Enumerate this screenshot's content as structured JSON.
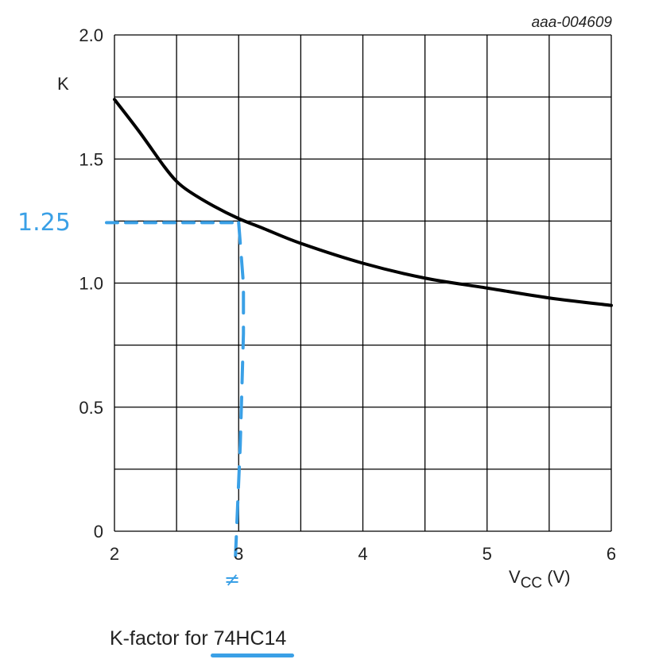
{
  "chart_data": {
    "type": "line",
    "title": "",
    "figure_code": "aaa-004609",
    "xlabel_main": "V",
    "xlabel_sub": "CC",
    "xlabel_unit": " (V)",
    "ylabel": "K",
    "xlim": [
      2,
      6
    ],
    "ylim": [
      0,
      2.0
    ],
    "xticks": [
      2,
      3,
      4,
      5,
      6
    ],
    "xtick_labels": [
      "2",
      "3",
      "4",
      "5",
      "6"
    ],
    "yticks": [
      0,
      0.5,
      1.0,
      1.5,
      2.0
    ],
    "ytick_labels": [
      "0",
      "0.5",
      "1.0",
      "1.5",
      "2.0"
    ],
    "x_grid": [
      2,
      2.5,
      3,
      3.5,
      4,
      4.5,
      5,
      5.5,
      6
    ],
    "y_grid": [
      0,
      0.25,
      0.5,
      0.75,
      1.0,
      1.25,
      1.5,
      1.75,
      2.0
    ],
    "grid": true,
    "series": [
      {
        "x": [
          2.0,
          2.2,
          2.4,
          2.5,
          2.6,
          2.8,
          3.0,
          3.2,
          3.5,
          4.0,
          4.5,
          5.0,
          5.5,
          6.0
        ],
        "y": [
          1.74,
          1.61,
          1.47,
          1.41,
          1.37,
          1.31,
          1.26,
          1.22,
          1.16,
          1.08,
          1.02,
          0.98,
          0.94,
          0.91
        ],
        "color": "#000000"
      }
    ],
    "annotations": {
      "marked_x": 3,
      "marked_y": 1.25,
      "y_label": "1.25",
      "color": "#3aa0e6"
    }
  },
  "caption": {
    "prefix": "K-factor for ",
    "highlight": "74HC14"
  }
}
